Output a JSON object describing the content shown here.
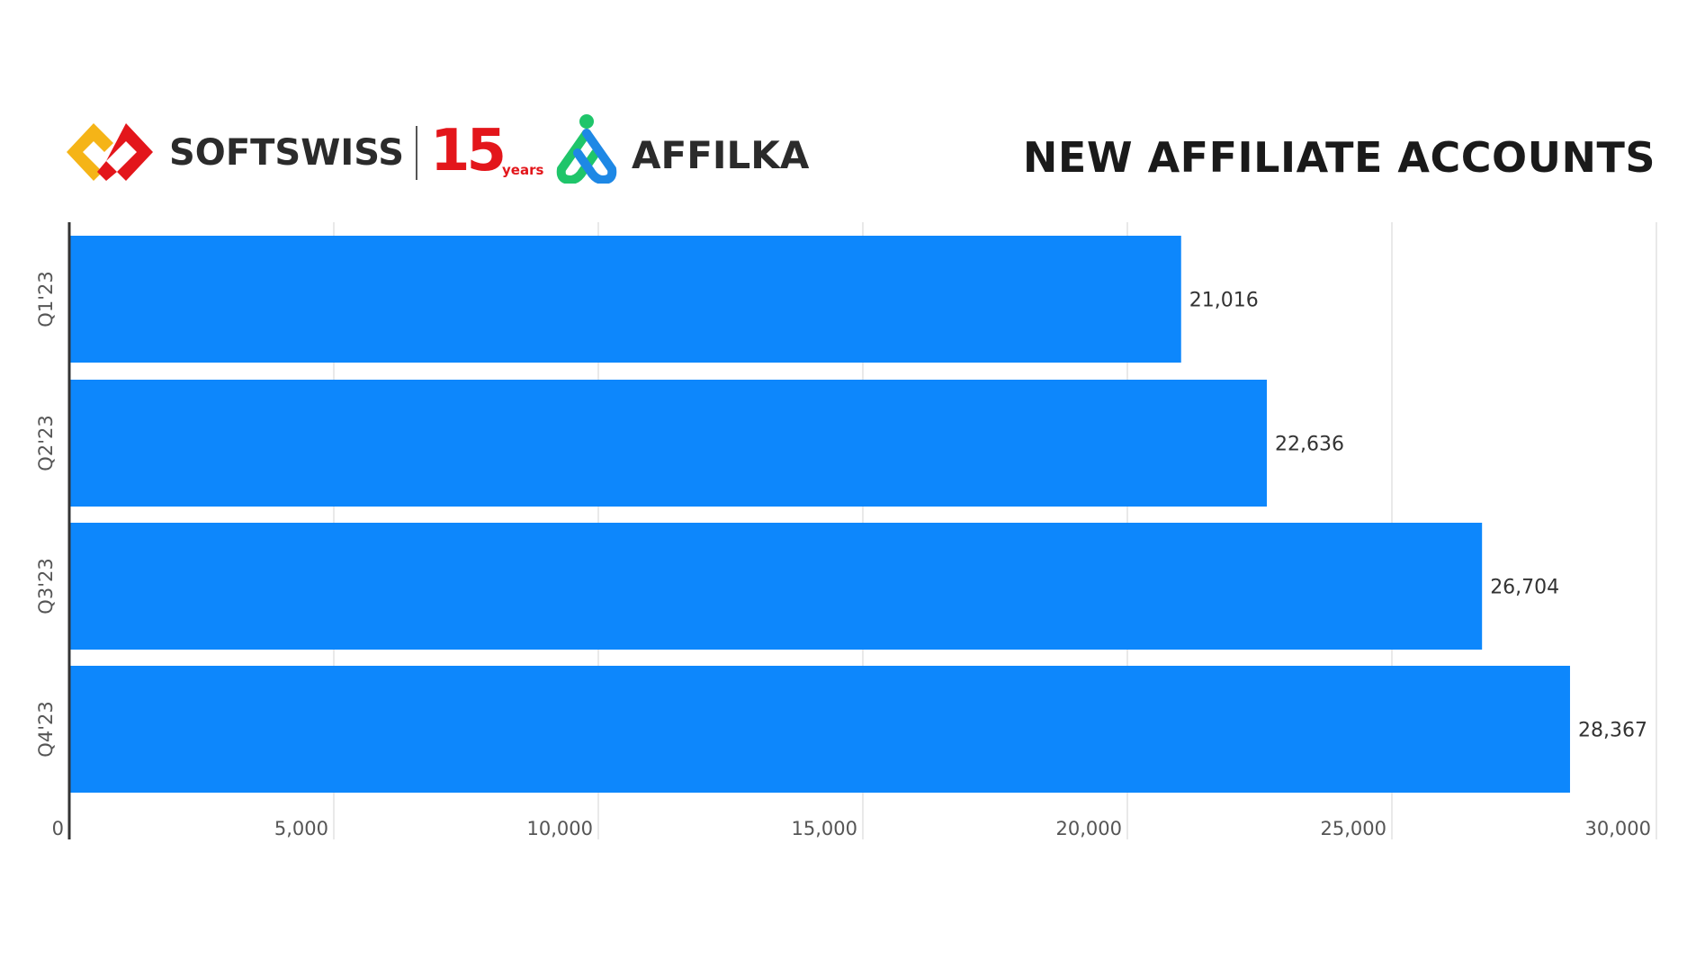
{
  "header": {
    "logos": {
      "softswiss": "SOFTSWISS",
      "anniversary_number": "15",
      "anniversary_suffix": "years",
      "affilka": "AFFILKA"
    }
  },
  "chart_data": {
    "type": "bar",
    "orientation": "horizontal",
    "title": "NEW AFFILIATE ACCOUNTS",
    "categories": [
      "Q1'23",
      "Q2'23",
      "Q3'23",
      "Q4'23"
    ],
    "values": [
      21016,
      22636,
      26704,
      28367
    ],
    "data_labels": [
      "21,016",
      "22,636",
      "26,704",
      "28,367"
    ],
    "xlim": [
      0,
      30000
    ],
    "xticks": [
      0,
      5000,
      10000,
      15000,
      20000,
      25000,
      30000
    ],
    "xtick_labels": [
      "0",
      "5,000",
      "10,000",
      "15,000",
      "20,000",
      "25,000",
      "30,000"
    ],
    "xlabel": "",
    "ylabel": "",
    "grid": "vertical",
    "legend": "none",
    "bar_color": "#0d87fc"
  }
}
